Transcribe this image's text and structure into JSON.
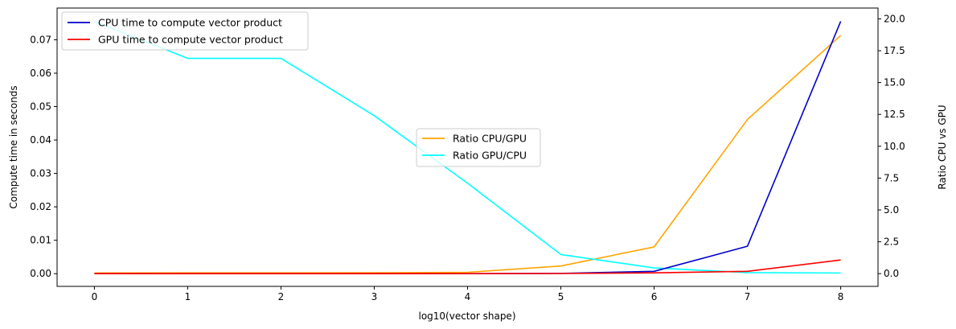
{
  "chart_data": {
    "type": "line",
    "xlabel": "log10(vector shape)",
    "x": [
      0,
      1,
      2,
      3,
      4,
      5,
      6,
      7,
      8
    ],
    "x_ticks": [
      "0",
      "1",
      "2",
      "3",
      "4",
      "5",
      "6",
      "7",
      "8"
    ],
    "xlim": [
      -0.4,
      8.4
    ],
    "left_axis": {
      "ylabel": "Compute time in seconds",
      "ylim": [
        -0.0038,
        0.0795
      ],
      "ticks": [
        0,
        0.01,
        0.02,
        0.03,
        0.04,
        0.05,
        0.06,
        0.07
      ],
      "tick_labels": [
        "0.00",
        "0.01",
        "0.02",
        "0.03",
        "0.04",
        "0.05",
        "0.06",
        "0.07"
      ],
      "series": [
        {
          "name": "CPU time to compute vector product",
          "color": "#0000cd",
          "values": [
            1e-05,
            1e-05,
            1e-05,
            1e-05,
            2e-05,
            8e-05,
            0.0007,
            0.0082,
            0.0755
          ]
        },
        {
          "name": "GPU time to compute vector product",
          "color": "#ff0000",
          "values": [
            1e-05,
            1e-05,
            1e-05,
            1e-05,
            2e-05,
            5e-05,
            0.00025,
            0.0007,
            0.0041
          ]
        }
      ],
      "legend_position": "upper-left"
    },
    "right_axis": {
      "ylabel": "Ratio CPU vs GPU",
      "ylim": [
        -1.0,
        20.85
      ],
      "ticks": [
        0,
        2.5,
        5,
        7.5,
        10,
        12.5,
        15,
        17.5,
        20
      ],
      "tick_labels": [
        "0.0",
        "2.5",
        "5.0",
        "7.5",
        "10.0",
        "12.5",
        "15.0",
        "17.5",
        "20.0"
      ],
      "series": [
        {
          "name": "Ratio CPU/GPU",
          "color": "#ffa500",
          "values": [
            0.05,
            0.06,
            0.06,
            0.07,
            0.1,
            0.6,
            2.1,
            12.1,
            18.7
          ]
        },
        {
          "name": "Ratio GPU/CPU",
          "color": "#00ffff",
          "values": [
            19.8,
            16.9,
            16.9,
            12.4,
            7.1,
            1.5,
            0.45,
            0.08,
            0.05
          ]
        }
      ],
      "legend_position": "center"
    }
  }
}
